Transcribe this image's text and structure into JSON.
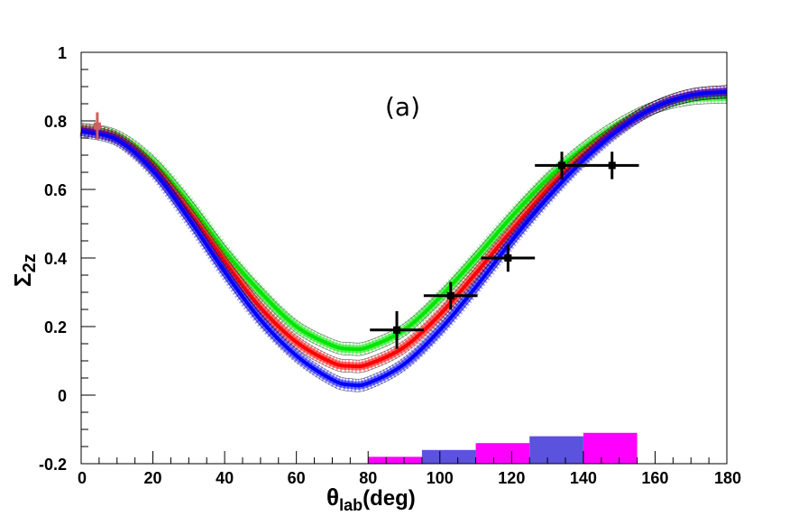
{
  "chart_data": {
    "type": "line",
    "panel_label": "(a)",
    "xlabel": {
      "main": "θ",
      "sub": "lab",
      "unit": "(deg)"
    },
    "ylabel": {
      "main": "Σ",
      "sub": "2z"
    },
    "xlim": [
      0,
      180
    ],
    "ylim": [
      -0.2,
      1.0
    ],
    "x_ticks": [
      "0",
      "20",
      "40",
      "60",
      "80",
      "100",
      "120",
      "140",
      "160",
      "180"
    ],
    "y_ticks": [
      "-0.2",
      "0",
      "0.2",
      "0.4",
      "0.6",
      "0.8",
      "1"
    ],
    "series": [
      {
        "name": "green band",
        "color": "#00e600",
        "band": true,
        "x": [
          0,
          10,
          20,
          30,
          40,
          50,
          60,
          70,
          75,
          80,
          90,
          100,
          110,
          120,
          130,
          140,
          150,
          160,
          170,
          180
        ],
        "values": [
          0.775,
          0.755,
          0.68,
          0.56,
          0.42,
          0.3,
          0.2,
          0.145,
          0.135,
          0.14,
          0.19,
          0.285,
          0.4,
          0.52,
          0.63,
          0.72,
          0.79,
          0.84,
          0.865,
          0.87
        ]
      },
      {
        "name": "red band",
        "color": "#ff0000",
        "band": true,
        "x": [
          0,
          10,
          20,
          30,
          40,
          50,
          60,
          70,
          75,
          80,
          90,
          100,
          110,
          120,
          130,
          140,
          150,
          160,
          170,
          180
        ],
        "values": [
          0.775,
          0.75,
          0.665,
          0.535,
          0.39,
          0.255,
          0.155,
          0.095,
          0.085,
          0.09,
          0.14,
          0.235,
          0.355,
          0.48,
          0.6,
          0.7,
          0.78,
          0.84,
          0.875,
          0.885
        ]
      },
      {
        "name": "blue band",
        "color": "#0000ff",
        "band": true,
        "x": [
          0,
          10,
          20,
          30,
          40,
          50,
          60,
          70,
          75,
          80,
          90,
          100,
          110,
          120,
          130,
          140,
          150,
          160,
          170,
          180
        ],
        "values": [
          0.77,
          0.745,
          0.655,
          0.515,
          0.36,
          0.22,
          0.115,
          0.045,
          0.03,
          0.035,
          0.09,
          0.19,
          0.315,
          0.45,
          0.575,
          0.685,
          0.775,
          0.84,
          0.875,
          0.885
        ]
      }
    ],
    "data_points": [
      {
        "x": 88,
        "y": 0.19,
        "xerr": 7.5,
        "yerr": 0.055,
        "color": "#000000"
      },
      {
        "x": 103,
        "y": 0.29,
        "xerr": 7.5,
        "yerr": 0.04,
        "color": "#000000"
      },
      {
        "x": 119,
        "y": 0.4,
        "xerr": 7.5,
        "yerr": 0.04,
        "color": "#000000"
      },
      {
        "x": 134,
        "y": 0.67,
        "xerr": 7.5,
        "yerr": 0.04,
        "color": "#000000"
      },
      {
        "x": 148,
        "y": 0.67,
        "xerr": 7.5,
        "yerr": 0.04,
        "color": "#000000"
      },
      {
        "x": 4.5,
        "y": 0.785,
        "xerr": 0,
        "yerr": 0.04,
        "color": "#d06060"
      }
    ],
    "bottom_bars": [
      {
        "x0": 80,
        "x1": 95,
        "top": -0.18,
        "color": "#ff00ff"
      },
      {
        "x0": 95,
        "x1": 110,
        "top": -0.16,
        "color": "#5b52dd"
      },
      {
        "x0": 110,
        "x1": 125,
        "top": -0.14,
        "color": "#ff00ff"
      },
      {
        "x0": 125,
        "x1": 140,
        "top": -0.12,
        "color": "#5b52dd"
      },
      {
        "x0": 140,
        "x1": 155,
        "top": -0.11,
        "color": "#ff00ff"
      }
    ]
  }
}
